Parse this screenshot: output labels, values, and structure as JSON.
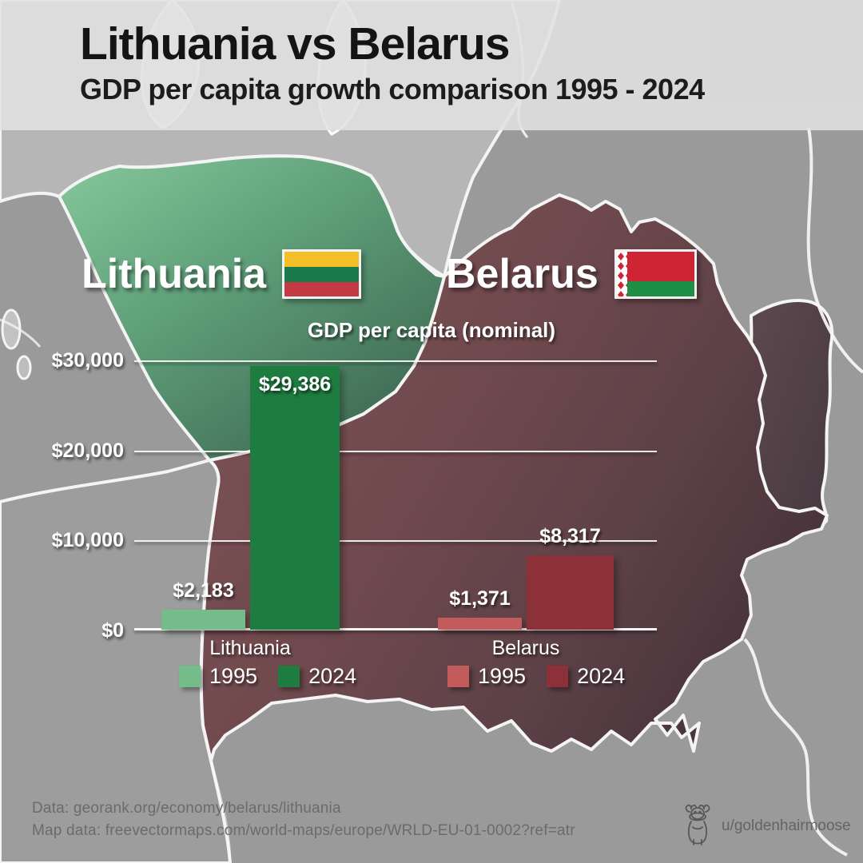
{
  "header": {
    "title": "Lithuania vs Belarus",
    "subtitle": "GDP per capita growth comparison 1995 - 2024"
  },
  "map": {
    "lithuania_label": "Lithuania",
    "belarus_label": "Belarus",
    "lithuania_flag_colors": {
      "top": "#F3BE28",
      "middle": "#1B7A4B",
      "bottom": "#C43A44"
    },
    "belarus_flag_colors": {
      "red": "#CE2433",
      "green": "#1F8F45",
      "ornament": "#CE2433"
    },
    "region_colors": {
      "sea": "#9a9a9a",
      "lithuania_gradient": [
        "#87c89c",
        "#3c644f"
      ],
      "belarus_gradient": [
        "#7e5456",
        "#4a353c"
      ],
      "latvia": "#b6b6b6",
      "poland": "#9d9d9d",
      "east_neighbor_gradient": [
        "#5c4a4e",
        "#463840"
      ]
    }
  },
  "chart_data": {
    "type": "bar",
    "title": "GDP per capita (nominal)",
    "categories": [
      "Lithuania",
      "Belarus"
    ],
    "series": [
      {
        "name": "1995",
        "values": [
          2183,
          1371
        ],
        "value_labels": [
          "$2,183",
          "$1,371"
        ],
        "colors": [
          "#74bd8b",
          "#c25b5b"
        ]
      },
      {
        "name": "2024",
        "values": [
          29386,
          8317
        ],
        "value_labels": [
          "$29,386",
          "$8,317"
        ],
        "colors": [
          "#1e7c40",
          "#8c3138"
        ]
      }
    ],
    "ylim": [
      0,
      30000
    ],
    "y_ticks": [
      {
        "value": 30000,
        "label": "$30,000"
      },
      {
        "value": 20000,
        "label": "$20,000"
      },
      {
        "value": 10000,
        "label": "$10,000"
      },
      {
        "value": 0,
        "label": "$0"
      }
    ],
    "grid": true,
    "legend_position": "below-categories"
  },
  "footer": {
    "source_line1": "Data: georank.org/economy/belarus/lithuania",
    "source_line2": "Map data: freevectormaps.com/world-maps/europe/WRLD-EU-01-0002?ref=atr",
    "credit": "u/goldenhairmoose",
    "credit_icon": "moose-icon"
  }
}
